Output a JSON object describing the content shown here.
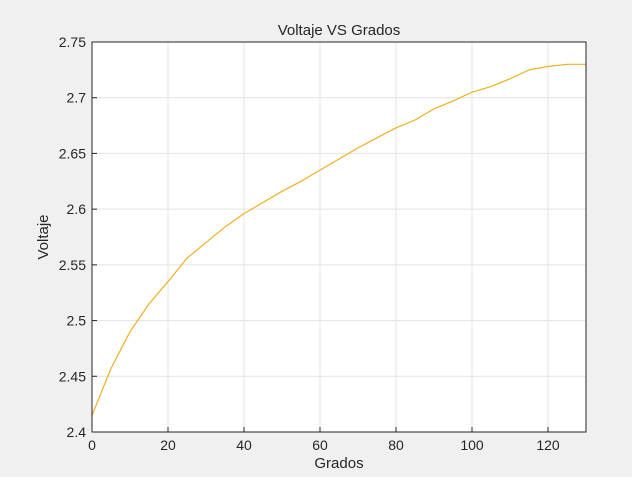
{
  "chart_data": {
    "type": "line",
    "title": "Voltaje VS Grados",
    "xlabel": "Grados",
    "ylabel": "Voltaje",
    "xlim": [
      0,
      130
    ],
    "ylim": [
      2.4,
      2.75
    ],
    "xticks": [
      "0",
      "20",
      "40",
      "60",
      "80",
      "100",
      "120"
    ],
    "yticks": [
      "2.4",
      "2.45",
      "2.5",
      "2.55",
      "2.6",
      "2.65",
      "2.7",
      "2.75"
    ],
    "grid": true,
    "series": [
      {
        "color": "#EDB120",
        "x": [
          0,
          5,
          10,
          15,
          20,
          25,
          30,
          35,
          40,
          45,
          50,
          55,
          60,
          65,
          70,
          75,
          80,
          85,
          90,
          95,
          100,
          105,
          110,
          115,
          120,
          125,
          130
        ],
        "y": [
          2.415,
          2.457,
          2.49,
          2.515,
          2.535,
          2.556,
          2.57,
          2.584,
          2.596,
          2.606,
          2.616,
          2.625,
          2.635,
          2.645,
          2.655,
          2.664,
          2.673,
          2.68,
          2.69,
          2.697,
          2.705,
          2.71,
          2.717,
          2.725,
          2.728,
          2.73,
          2.73
        ]
      }
    ]
  },
  "colors": {
    "figure_background": "#f0f0f0",
    "axes_background": "#ffffff",
    "grid": "#e3e3e3",
    "axis": "#262626"
  }
}
